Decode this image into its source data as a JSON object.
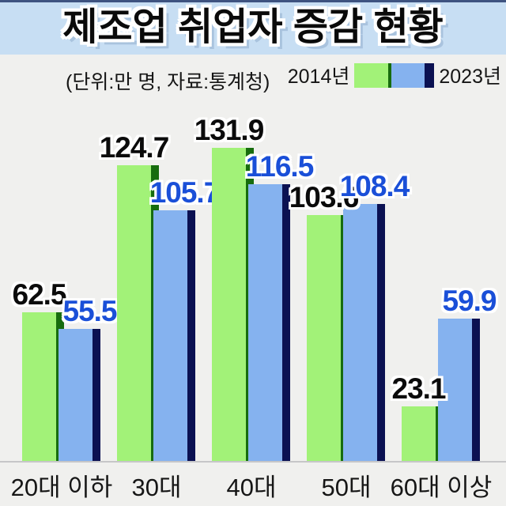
{
  "colors": {
    "top_strip": "#3e5380",
    "header_bg": "#c7def3",
    "page_bg": "#f0f0ee",
    "baseline": "#c6c6c8",
    "green": "#a2f278",
    "green_edge": "#176c0e",
    "blue": "#85b2ef",
    "navy": "#0b1152",
    "label_black": "#0b0b0b",
    "label_blue": "#1a4fd8"
  },
  "chart_data": {
    "type": "bar",
    "title": "제조업 취업자 증감 현황",
    "unit_note": "(단위:만 명, 자료:통계청)",
    "categories": [
      "20대 이하",
      "30대",
      "40대",
      "50대",
      "60대 이상"
    ],
    "series": [
      {
        "key": "2014",
        "name": "2014년",
        "color": "#a2f278",
        "edge_color": "#176c0e",
        "label_color": "#0b0b0b",
        "values": [
          62.5,
          124.7,
          131.9,
          103.6,
          23.1
        ]
      },
      {
        "key": "2023",
        "name": "2023년",
        "color": "#85b2ef",
        "edge_color": "#0b1152",
        "label_color": "#1a4fd8",
        "values": [
          55.5,
          105.7,
          116.5,
          108.4,
          59.9
        ]
      }
    ],
    "ylim": [
      0,
      140
    ],
    "xlabel": "",
    "ylabel": "",
    "grid": false,
    "value_labels": true,
    "legend_position": "top-right"
  }
}
